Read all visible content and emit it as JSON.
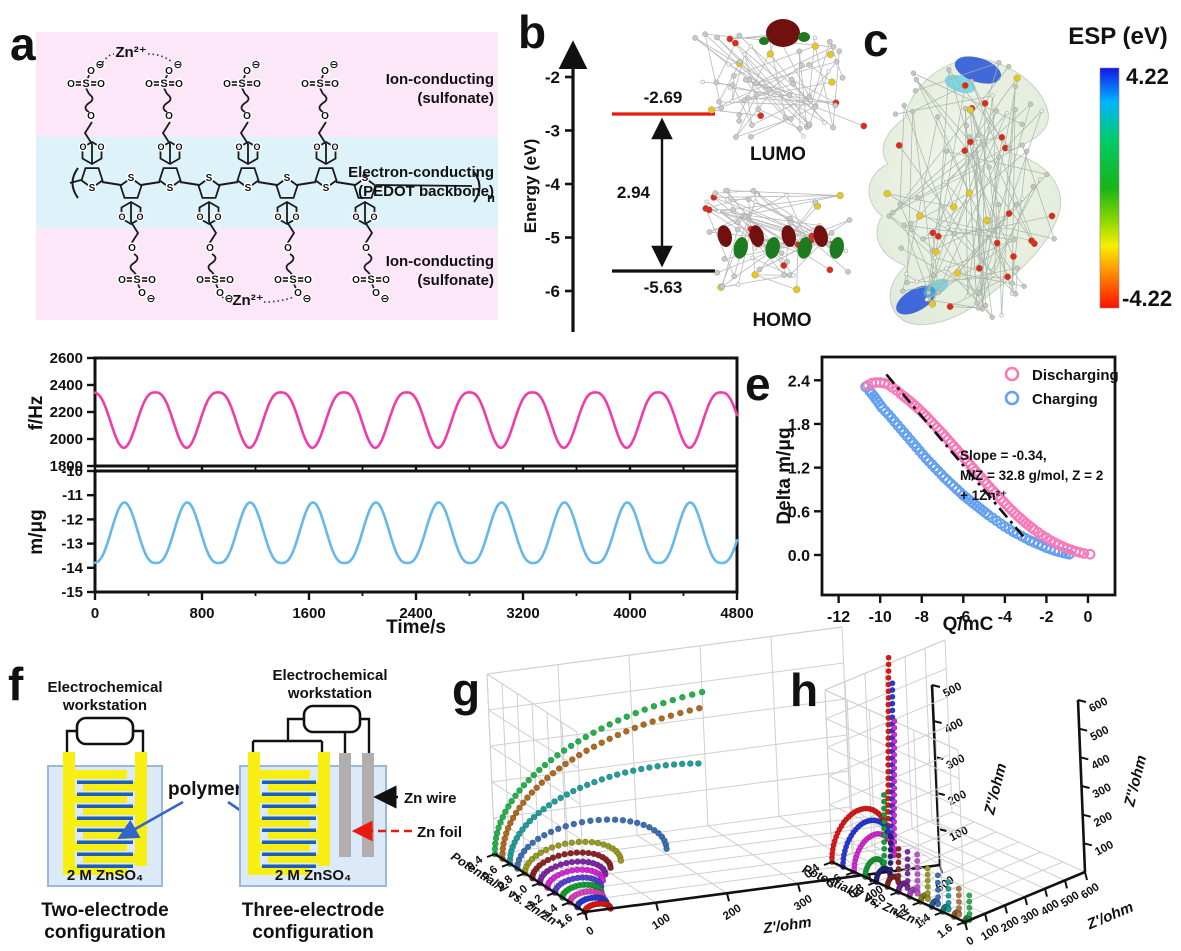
{
  "panels": {
    "a": {
      "label": "a",
      "top_band": {
        "line1": "Ion-conducting",
        "line2": "(sulfonate)"
      },
      "mid_band": {
        "line1": "Electron-conducting",
        "line2": "(PEDOT backbone)"
      },
      "bottom_band": {
        "line1": "Ion-conducting",
        "line2": "(sulfonate)"
      },
      "zn_ion": "Zn²⁺",
      "repeat_sub": "n",
      "atoms": {
        "s": "S",
        "o": "O",
        "minus": "⊖"
      },
      "colors": {
        "ion_band": "#fbe7f8",
        "electron_band": "#def2fa",
        "zn": "#29abe2",
        "bond": "#1a1a1a"
      }
    },
    "b": {
      "label": "b",
      "axis_label": "Energy (eV)",
      "ticks": [
        -2,
        -3,
        -4,
        -5,
        -6
      ],
      "lumo_value": "-2.69",
      "homo_value": "-5.63",
      "gap_value": "2.94",
      "lumo_caption": "LUMO",
      "homo_caption": "HOMO",
      "lumo_color": "#e8190f"
    },
    "c": {
      "label": "c",
      "colorbar_title": "ESP (eV)",
      "max": "4.22",
      "min": "-4.22"
    },
    "f": {
      "label": "f",
      "left": {
        "workstation1": "Electrochemical",
        "workstation2": "workstation",
        "electrolyte": "2 M ZnSO₄",
        "caption1": "Two-electrode",
        "caption2": "configuration"
      },
      "right": {
        "workstation1": "Electrochemical",
        "workstation2": "workstation",
        "electrolyte": "2 M ZnSO₄",
        "caption1": "Three-electrode",
        "caption2": "configuration"
      },
      "polymer_label": "polymer",
      "zn_wire_label": "Zn wire",
      "zn_foil_label": "Zn foil",
      "colors": {
        "electrode": "#f7ee12",
        "polymer": "#1b5ebc",
        "solution": "#dce9f8",
        "solution_border": "#9ab8d8",
        "zn_bar": "#b3aeae",
        "foil_label": "#e8190f",
        "arrow_blue": "#3465c8"
      }
    },
    "g": {
      "label": "g"
    },
    "h": {
      "label": "h"
    }
  },
  "chart_data": [
    {
      "id": "d",
      "type": "line",
      "xlabel": "Time/s",
      "xlim": [
        0,
        4800
      ],
      "x_ticks": [
        0,
        800,
        1600,
        2400,
        3200,
        4000,
        4800
      ],
      "x_minor_step": 400,
      "subplots": [
        {
          "ylabel": "f/Hz",
          "ylim": [
            1800,
            2600
          ],
          "y_ticks": [
            1800,
            2000,
            2200,
            2400,
            2600
          ],
          "series": {
            "name": "frequency",
            "color": "#f03ca8",
            "waveform": {
              "max": 2345,
              "min": 1935,
              "period_s": 470,
              "anchor_s": -20,
              "exp": 1.35,
              "anchor": "max"
            }
          }
        },
        {
          "ylabel": "m/μg",
          "ylim": [
            -15,
            -10
          ],
          "y_ticks": [
            -15,
            -14,
            -13,
            -12,
            -11,
            -10
          ],
          "series": {
            "name": "mass",
            "color": "#66b8ea",
            "waveform": {
              "max": -11.3,
              "min": -13.8,
              "period_s": 470,
              "anchor_s": -15,
              "exp": 1.35,
              "anchor": "min"
            }
          }
        }
      ]
    },
    {
      "id": "e",
      "type": "scatter",
      "xlabel": "Q/mC",
      "ylabel": "Delta m/μg",
      "xlim": [
        -12.8,
        1.3
      ],
      "x_ticks": [
        -12,
        -10,
        -8,
        -6,
        -4,
        -2,
        0
      ],
      "ylim": [
        -0.55,
        2.72
      ],
      "y_ticks": [
        0.0,
        0.6,
        1.2,
        1.8,
        2.4
      ],
      "legend": [
        {
          "label": "Discharging",
          "color": "#f97ab8"
        },
        {
          "label": "Charging",
          "color": "#64a0f2"
        }
      ],
      "annotation": [
        "Slope = -0.34,",
        "M/Z = 32.8 g/mol, Z = 2",
        "+ 1Zn²⁺"
      ],
      "fit_line": {
        "x1": -9.7,
        "y1": 2.48,
        "x2": -3.1,
        "y2": 0.25,
        "style": "dash-dot",
        "color": "#111111"
      },
      "series": [
        {
          "name": "Charging",
          "color": "#64a0f2",
          "points": [
            [
              -10.7,
              2.31
            ],
            [
              -10.5,
              2.25
            ],
            [
              -10.3,
              2.18
            ],
            [
              -10.1,
              2.1
            ],
            [
              -9.9,
              2.02
            ],
            [
              -9.6,
              1.93
            ],
            [
              -9.3,
              1.83
            ],
            [
              -9.0,
              1.73
            ],
            [
              -8.7,
              1.63
            ],
            [
              -8.4,
              1.53
            ],
            [
              -8.1,
              1.43
            ],
            [
              -7.8,
              1.33
            ],
            [
              -7.5,
              1.24
            ],
            [
              -7.2,
              1.15
            ],
            [
              -6.9,
              1.06
            ],
            [
              -6.6,
              0.98
            ],
            [
              -6.3,
              0.9
            ],
            [
              -6.0,
              0.82
            ],
            [
              -5.6,
              0.73
            ],
            [
              -5.2,
              0.64
            ],
            [
              -4.8,
              0.55
            ],
            [
              -4.4,
              0.47
            ],
            [
              -4.0,
              0.39
            ],
            [
              -3.6,
              0.32
            ],
            [
              -3.2,
              0.26
            ],
            [
              -2.8,
              0.2
            ],
            [
              -2.4,
              0.15
            ],
            [
              -2.0,
              0.1
            ],
            [
              -1.6,
              0.06
            ],
            [
              -1.2,
              0.03
            ],
            [
              -0.9,
              0.01
            ]
          ]
        },
        {
          "name": "Discharging",
          "color": "#f97ab8",
          "points": [
            [
              -10.6,
              2.33
            ],
            [
              -10.4,
              2.36
            ],
            [
              -10.2,
              2.37
            ],
            [
              -10.0,
              2.37
            ],
            [
              -9.8,
              2.36
            ],
            [
              -9.6,
              2.34
            ],
            [
              -9.4,
              2.3
            ],
            [
              -9.2,
              2.26
            ],
            [
              -9.0,
              2.21
            ],
            [
              -8.6,
              2.12
            ],
            [
              -8.2,
              2.02
            ],
            [
              -7.8,
              1.91
            ],
            [
              -7.4,
              1.79
            ],
            [
              -7.0,
              1.67
            ],
            [
              -6.6,
              1.54
            ],
            [
              -6.2,
              1.41
            ],
            [
              -5.8,
              1.28
            ],
            [
              -5.4,
              1.15
            ],
            [
              -5.0,
              1.02
            ],
            [
              -4.6,
              0.89
            ],
            [
              -4.2,
              0.77
            ],
            [
              -3.8,
              0.65
            ],
            [
              -3.4,
              0.54
            ],
            [
              -3.0,
              0.44
            ],
            [
              -2.6,
              0.35
            ],
            [
              -2.2,
              0.27
            ],
            [
              -1.8,
              0.2
            ],
            [
              -1.4,
              0.14
            ],
            [
              -1.0,
              0.09
            ],
            [
              -0.6,
              0.05
            ],
            [
              -0.2,
              0.02
            ],
            [
              0.1,
              0.01
            ]
          ]
        }
      ]
    },
    {
      "id": "g",
      "type": "scatter3d",
      "xlabel": "Z'/ohm",
      "ylabel": "Potential/V vs. Zn/Zn²⁺",
      "zlabel": "Z''/ohm",
      "xlim": [
        0,
        500
      ],
      "x_ticks": [
        0,
        100,
        200,
        300,
        400,
        500
      ],
      "y_ticks": [
        0.4,
        0.6,
        0.8,
        1.0,
        1.2,
        1.4,
        1.6
      ],
      "zlim": [
        0,
        500
      ],
      "z_ticks": [
        100,
        200,
        300,
        400,
        500
      ],
      "series": [
        {
          "potential": 0.4,
          "color": "#21b24b",
          "diameter": 760,
          "reach": 300,
          "tail": 0
        },
        {
          "potential": 0.5,
          "color": "#b06a1e",
          "diameter": 700,
          "reach": 285,
          "tail": 0
        },
        {
          "potential": 0.6,
          "color": "#1f9e9e",
          "diameter": 430,
          "reach": 270,
          "tail": 0
        },
        {
          "potential": 0.7,
          "color": "#3a6eb5",
          "diameter": 210,
          "reach": 210,
          "tail": 0
        },
        {
          "potential": 0.8,
          "color": "#9a9a20",
          "diameter": 135,
          "reach": 135,
          "tail": 0
        },
        {
          "potential": 0.9,
          "color": "#8b2424",
          "diameter": 110,
          "reach": 110,
          "tail": 0
        },
        {
          "potential": 1.0,
          "color": "#7d26a8",
          "diameter": 92,
          "reach": 92,
          "tail": 0
        },
        {
          "potential": 1.1,
          "color": "#d926d9",
          "diameter": 78,
          "reach": 78,
          "tail": 0
        },
        {
          "potential": 1.2,
          "color": "#5a40d8",
          "diameter": 65,
          "reach": 65,
          "tail": 0
        },
        {
          "potential": 1.3,
          "color": "#12a035",
          "diameter": 55,
          "reach": 55,
          "tail": 0
        },
        {
          "potential": 1.4,
          "color": "#e040c0",
          "diameter": 47,
          "reach": 47,
          "tail": 0
        },
        {
          "potential": 1.5,
          "color": "#2638d8",
          "diameter": 41,
          "reach": 41,
          "tail": 0
        },
        {
          "potential": 1.6,
          "color": "#e01616",
          "diameter": 36,
          "reach": 36,
          "tail": 0
        }
      ]
    },
    {
      "id": "h",
      "type": "scatter3d",
      "xlabel": "Z'/ohm",
      "ylabel": "Potential/V vs. Zn/Zn²⁺",
      "zlabel": "Z''/ohm",
      "xlim": [
        0,
        600
      ],
      "x_ticks": [
        0,
        100,
        200,
        300,
        400,
        500,
        600
      ],
      "y_ticks": [
        0.4,
        0.6,
        0.8,
        1.0,
        1.2,
        1.4,
        1.6
      ],
      "zlim": [
        0,
        600
      ],
      "z_ticks": [
        100,
        200,
        300,
        400,
        500,
        600
      ],
      "series": [
        {
          "potential": 0.4,
          "color": "#e01616",
          "diameter": 280,
          "reach": 280,
          "tail": 620
        },
        {
          "potential": 0.5,
          "color": "#2638d8",
          "diameter": 245,
          "reach": 245,
          "tail": 560
        },
        {
          "potential": 0.6,
          "color": "#d926d9",
          "diameter": 200,
          "reach": 200,
          "tail": 460
        },
        {
          "potential": 0.7,
          "color": "#12a035",
          "diameter": 95,
          "reach": 95,
          "tail": 255
        },
        {
          "potential": 0.8,
          "color": "#23237d",
          "diameter": 70,
          "reach": 70,
          "tail": 135
        },
        {
          "potential": 0.9,
          "color": "#8b2424",
          "diameter": 55,
          "reach": 55,
          "tail": 115
        },
        {
          "potential": 1.0,
          "color": "#7d26a8",
          "diameter": 46,
          "reach": 46,
          "tail": 125
        },
        {
          "potential": 1.1,
          "color": "#c050d0",
          "diameter": 40,
          "reach": 40,
          "tail": 135
        },
        {
          "potential": 1.2,
          "color": "#9a9a20",
          "diameter": 36,
          "reach": 36,
          "tail": 105
        },
        {
          "potential": 1.3,
          "color": "#3a6eb5",
          "diameter": 32,
          "reach": 32,
          "tail": 100
        },
        {
          "potential": 1.4,
          "color": "#1f9e9e",
          "diameter": 29,
          "reach": 29,
          "tail": 95
        },
        {
          "potential": 1.5,
          "color": "#b07a40",
          "diameter": 26,
          "reach": 26,
          "tail": 90
        },
        {
          "potential": 1.6,
          "color": "#28b050",
          "diameter": 23,
          "reach": 23,
          "tail": 85
        }
      ]
    }
  ]
}
